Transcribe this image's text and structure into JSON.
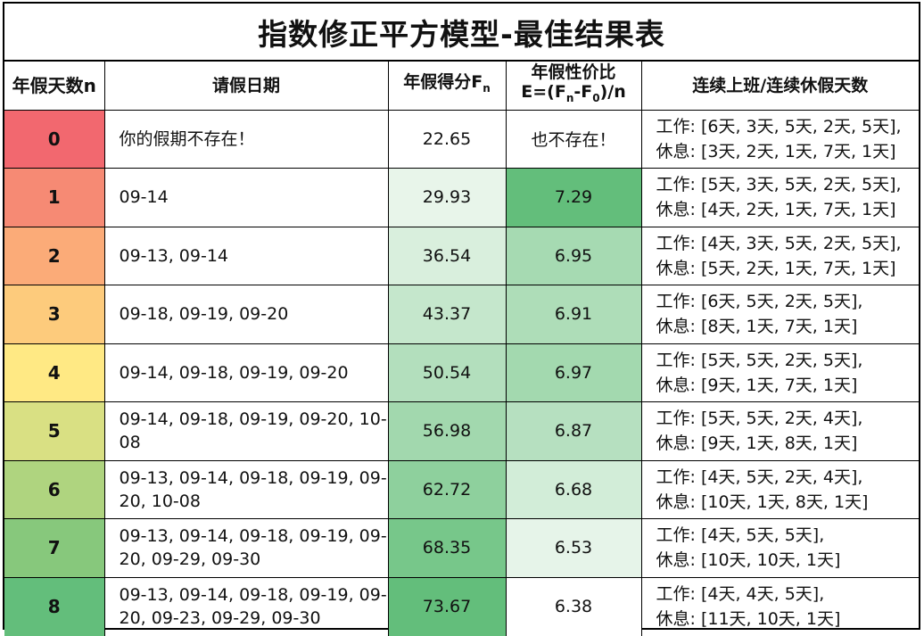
{
  "title": "指数修正平方模型-最佳结果表",
  "headers": {
    "n": "年假天数n",
    "dates": "请假日期",
    "score_prefix": "年假得分F",
    "score_sub": "n",
    "eff_line1": "年假性价比",
    "eff_line2_a": "E=(F",
    "eff_line2_sub1": "n",
    "eff_line2_b": "-F",
    "eff_line2_sub2": "0",
    "eff_line2_c": ")/n",
    "seq": "连续上班/连续休假天数"
  },
  "rows": [
    {
      "n": "0",
      "dates": "你的假期不存在！",
      "score": "22.65",
      "eff": "也不存在！",
      "work": "工作: [6天, 3天, 5天, 2天, 5天],",
      "rest": "休息: [3天, 2天, 1天, 7天, 1天]",
      "n_color": "#f2686f",
      "score_color": "#ffffff",
      "eff_color": "#ffffff"
    },
    {
      "n": "1",
      "dates": "09-14",
      "score": "29.93",
      "eff": "7.29",
      "work": "工作: [5天, 3天, 5天, 2天, 5天],",
      "rest": "休息: [4天, 2天, 1天, 7天, 1天]",
      "n_color": "#f68a74",
      "score_color": "#e8f5ea",
      "eff_color": "#63be7b"
    },
    {
      "n": "2",
      "dates": "09-13, 09-14",
      "score": "36.54",
      "eff": "6.95",
      "work": "工作: [4天, 3天, 5天, 2天, 5天],",
      "rest": "休息: [5天, 2天, 1天, 7天, 1天]",
      "n_color": "#fbab78",
      "score_color": "#d9efdd",
      "eff_color": "#a6dab2"
    },
    {
      "n": "3",
      "dates": "09-18, 09-19, 09-20",
      "score": "43.37",
      "eff": "6.91",
      "work": "工作: [6天, 5天, 2天, 5天],",
      "rest": "休息: [8天, 1天, 7天, 1天]",
      "n_color": "#fdcb7c",
      "score_color": "#c5e7cc",
      "eff_color": "#aeddb8"
    },
    {
      "n": "4",
      "dates": "09-14, 09-18, 09-19, 09-20",
      "score": "50.54",
      "eff": "6.97",
      "work": "工作: [5天, 5天, 2天, 5天],",
      "rest": "休息: [9天, 1天, 7天, 1天]",
      "n_color": "#ffe984",
      "score_color": "#b3dfbd",
      "eff_color": "#a3d9af"
    },
    {
      "n": "5",
      "dates": "09-14, 09-18, 09-19, 09-20, 10-08",
      "score": "56.98",
      "eff": "6.87",
      "work": "工作: [5天, 5天, 2天, 4天],",
      "rest": "休息: [9天, 1天, 8天, 1天]",
      "n_color": "#d9e083",
      "score_color": "#a2d8ae",
      "eff_color": "#b6e0c0"
    },
    {
      "n": "6",
      "dates": "09-13, 09-14, 09-18, 09-19, 09-20, 10-08",
      "score": "62.72",
      "eff": "6.68",
      "work": "工作: [4天, 5天, 2天, 4天],",
      "rest": "休息: [10天, 1天, 8天, 1天]",
      "n_color": "#afd47f",
      "score_color": "#8ed09d",
      "eff_color": "#d2edd8"
    },
    {
      "n": "7",
      "dates": "09-13, 09-14, 09-18, 09-19, 09-20, 09-29, 09-30",
      "score": "68.35",
      "eff": "6.53",
      "work": "工作: [4天, 5天, 5天],",
      "rest": "休息: [10天, 10天, 1天]",
      "n_color": "#87c87c",
      "score_color": "#77c78a",
      "eff_color": "#e6f4e9"
    },
    {
      "n": "8",
      "dates": "09-13, 09-14, 09-18, 09-19, 09-20, 09-23, 09-29, 09-30",
      "score": "73.67",
      "eff": "6.38",
      "work": "工作: [4天, 4天, 5天],",
      "rest": "休息: [11天, 10天, 1天]",
      "n_color": "#63be7b",
      "score_color": "#63be7b",
      "eff_color": "#ffffff"
    }
  ]
}
